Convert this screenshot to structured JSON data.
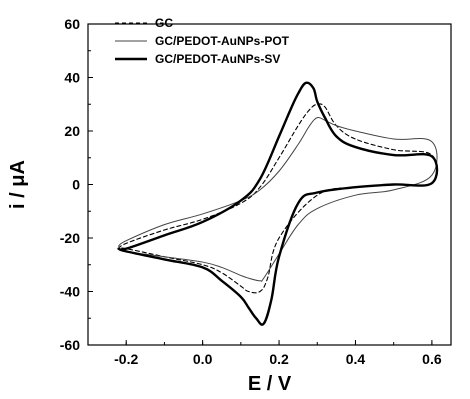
{
  "chart_data": {
    "type": "line",
    "title": "",
    "xlabel": "E / V",
    "ylabel": "i / μA",
    "xlim": [
      -0.3,
      0.65
    ],
    "ylim": [
      -60,
      60
    ],
    "x_ticks": [
      -0.2,
      0.0,
      0.2,
      0.4,
      0.6
    ],
    "x_tick_labels": [
      "-0.2",
      "0.0",
      "0.2",
      "0.4",
      "0.6"
    ],
    "y_ticks": [
      -60,
      -40,
      -20,
      0,
      20,
      40,
      60
    ],
    "y_tick_labels": [
      "-60",
      "-40",
      "-20",
      "0",
      "20",
      "40",
      "60"
    ],
    "grid": false,
    "legend_position": "top-left",
    "series": [
      {
        "name": "GC",
        "style": "dashed",
        "color": "#000000",
        "x": [
          -0.22,
          -0.2,
          -0.1,
          0.0,
          0.1,
          0.15,
          0.2,
          0.25,
          0.28,
          0.3,
          0.32,
          0.35,
          0.4,
          0.5,
          0.6,
          0.6,
          0.5,
          0.4,
          0.3,
          0.2,
          0.17,
          0.15,
          0.12,
          0.1,
          0.05,
          0.0,
          -0.1,
          -0.2,
          -0.22
        ],
        "y": [
          -24,
          -22,
          -17,
          -13,
          -7,
          -1,
          10,
          22,
          28,
          30,
          29,
          22,
          17,
          13,
          11,
          0.5,
          0,
          -1,
          -4,
          -20,
          -35,
          -40,
          -40,
          -38,
          -33,
          -30,
          -27,
          -24,
          -24
        ]
      },
      {
        "name": "GC/PEDOT-AuNPs-POT",
        "style": "thin",
        "color": "#444444",
        "x": [
          -0.22,
          -0.2,
          -0.1,
          0.0,
          0.1,
          0.15,
          0.2,
          0.25,
          0.28,
          0.3,
          0.32,
          0.35,
          0.4,
          0.5,
          0.6,
          0.6,
          0.5,
          0.4,
          0.3,
          0.25,
          0.2,
          0.16,
          0.15,
          0.12,
          0.1,
          0.05,
          0.0,
          -0.1,
          -0.2,
          -0.22
        ],
        "y": [
          -23,
          -21,
          -15,
          -11,
          -6,
          -2,
          5,
          15,
          22,
          25,
          24,
          22,
          20,
          17,
          16,
          3.5,
          -2,
          -4,
          -9,
          -15,
          -26,
          -35,
          -36,
          -35,
          -34,
          -31,
          -29,
          -27,
          -25,
          -23
        ]
      },
      {
        "name": "GC/PEDOT-AuNPs-SV",
        "style": "thick",
        "color": "#000000",
        "x": [
          -0.22,
          -0.2,
          -0.1,
          0.0,
          0.1,
          0.15,
          0.2,
          0.23,
          0.25,
          0.27,
          0.29,
          0.3,
          0.32,
          0.35,
          0.4,
          0.5,
          0.6,
          0.6,
          0.5,
          0.4,
          0.3,
          0.25,
          0.2,
          0.18,
          0.16,
          0.14,
          0.12,
          0.1,
          0.05,
          0.0,
          -0.1,
          -0.2,
          -0.22
        ],
        "y": [
          -24,
          -24,
          -19,
          -14,
          -6,
          2,
          18,
          28,
          34,
          38,
          36,
          31,
          25,
          18,
          14,
          11,
          10.5,
          0.5,
          0,
          -1,
          -3,
          -7,
          -27,
          -43,
          -52,
          -50,
          -46,
          -42,
          -36,
          -31,
          -28,
          -25,
          -24
        ]
      }
    ]
  }
}
